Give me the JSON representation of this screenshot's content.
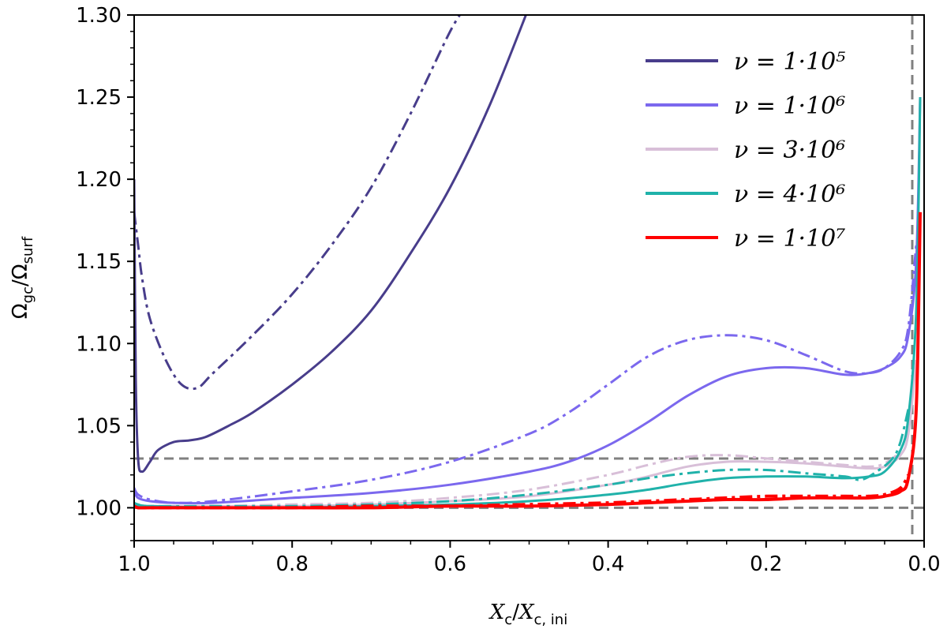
{
  "chart_data": {
    "type": "line",
    "xlabel": "Xc/Xc,ini",
    "ylabel": "Ωgc/Ωsurf",
    "xlim": [
      1.0,
      0.0
    ],
    "ylim": [
      0.98,
      1.3
    ],
    "x_ticks": [
      1.0,
      0.8,
      0.6,
      0.4,
      0.2,
      0.0
    ],
    "x_tick_labels": [
      "1.0",
      "0.8",
      "0.6",
      "0.4",
      "0.2",
      "0.0"
    ],
    "y_ticks": [
      1.0,
      1.05,
      1.1,
      1.15,
      1.2,
      1.25,
      1.3
    ],
    "y_tick_labels": [
      "1.00",
      "1.05",
      "1.10",
      "1.15",
      "1.20",
      "1.25",
      "1.30"
    ],
    "legend_position": "top-right",
    "legend": [
      {
        "label": "ν = 1·10⁵",
        "color": "#483d8b"
      },
      {
        "label": "ν = 1·10⁶",
        "color": "#7b68ee"
      },
      {
        "label": "ν = 3·10⁶",
        "color": "#d8bfd8"
      },
      {
        "label": "ν = 4·10⁶",
        "color": "#20b2aa"
      },
      {
        "label": "ν = 1·10⁷",
        "color": "#ff0000"
      }
    ],
    "reference_lines": {
      "horizontal": [
        1.0,
        1.03
      ],
      "vertical": [
        0.015
      ],
      "color": "#808080",
      "style": "dashed"
    },
    "series": [
      {
        "name": "ν=1e5 solid",
        "color": "#483d8b",
        "style": "solid",
        "width": 3,
        "x": [
          1.0,
          0.998,
          0.995,
          0.99,
          0.98,
          0.97,
          0.95,
          0.93,
          0.91,
          0.88,
          0.85,
          0.8,
          0.75,
          0.7,
          0.65,
          0.6,
          0.55,
          0.5
        ],
        "y": [
          1.2,
          1.08,
          1.03,
          1.022,
          1.028,
          1.035,
          1.04,
          1.041,
          1.043,
          1.05,
          1.058,
          1.075,
          1.095,
          1.12,
          1.155,
          1.195,
          1.245,
          1.305
        ]
      },
      {
        "name": "ν=1e5 dashdot",
        "color": "#483d8b",
        "style": "dashdot",
        "width": 3,
        "x": [
          1.0,
          0.995,
          0.99,
          0.98,
          0.96,
          0.94,
          0.92,
          0.9,
          0.85,
          0.8,
          0.75,
          0.7,
          0.65,
          0.6,
          0.58
        ],
        "y": [
          1.18,
          1.16,
          1.14,
          1.115,
          1.09,
          1.075,
          1.073,
          1.082,
          1.105,
          1.13,
          1.16,
          1.195,
          1.24,
          1.29,
          1.305
        ]
      },
      {
        "name": "ν=1e6 solid",
        "color": "#7b68ee",
        "style": "solid",
        "width": 3,
        "x": [
          1.0,
          0.995,
          0.98,
          0.95,
          0.9,
          0.8,
          0.7,
          0.6,
          0.5,
          0.45,
          0.4,
          0.35,
          0.3,
          0.25,
          0.2,
          0.15,
          0.1,
          0.07,
          0.05,
          0.03,
          0.02,
          0.01,
          0.005
        ],
        "y": [
          1.01,
          1.006,
          1.004,
          1.003,
          1.003,
          1.006,
          1.009,
          1.014,
          1.022,
          1.028,
          1.038,
          1.052,
          1.068,
          1.08,
          1.085,
          1.085,
          1.081,
          1.082,
          1.085,
          1.092,
          1.105,
          1.15,
          1.25
        ]
      },
      {
        "name": "ν=1e6 dashdot",
        "color": "#7b68ee",
        "style": "dashdot",
        "width": 3,
        "x": [
          1.0,
          0.995,
          0.98,
          0.95,
          0.9,
          0.8,
          0.7,
          0.6,
          0.5,
          0.45,
          0.4,
          0.35,
          0.3,
          0.25,
          0.2,
          0.15,
          0.1,
          0.07,
          0.05,
          0.03,
          0.02,
          0.01
        ],
        "y": [
          1.012,
          1.008,
          1.005,
          1.003,
          1.004,
          1.01,
          1.017,
          1.028,
          1.045,
          1.058,
          1.075,
          1.092,
          1.102,
          1.105,
          1.102,
          1.093,
          1.083,
          1.082,
          1.085,
          1.095,
          1.11,
          1.16
        ]
      },
      {
        "name": "ν=3e6 solid",
        "color": "#d8bfd8",
        "style": "solid",
        "width": 3,
        "x": [
          1.0,
          0.995,
          0.98,
          0.9,
          0.8,
          0.7,
          0.6,
          0.5,
          0.4,
          0.35,
          0.3,
          0.25,
          0.2,
          0.15,
          0.1,
          0.07,
          0.05,
          0.03,
          0.02,
          0.01
        ],
        "y": [
          1.002,
          1.001,
          1.001,
          1.001,
          1.001,
          1.002,
          1.004,
          1.007,
          1.014,
          1.019,
          1.025,
          1.028,
          1.028,
          1.027,
          1.025,
          1.024,
          1.025,
          1.032,
          1.045,
          1.09
        ]
      },
      {
        "name": "ν=3e6 dashdot",
        "color": "#d8bfd8",
        "style": "dashdot",
        "width": 3,
        "x": [
          1.0,
          0.995,
          0.98,
          0.9,
          0.8,
          0.7,
          0.6,
          0.5,
          0.4,
          0.35,
          0.3,
          0.25,
          0.2,
          0.15,
          0.1,
          0.07,
          0.05,
          0.03,
          0.02
        ],
        "y": [
          1.003,
          1.002,
          1.001,
          1.001,
          1.002,
          1.003,
          1.006,
          1.011,
          1.02,
          1.026,
          1.031,
          1.032,
          1.03,
          1.028,
          1.026,
          1.025,
          1.027,
          1.035,
          1.05
        ]
      },
      {
        "name": "ν=4e6 solid",
        "color": "#20b2aa",
        "style": "solid",
        "width": 3,
        "x": [
          1.0,
          0.995,
          0.98,
          0.9,
          0.8,
          0.7,
          0.6,
          0.5,
          0.4,
          0.35,
          0.3,
          0.25,
          0.2,
          0.15,
          0.1,
          0.07,
          0.05,
          0.03,
          0.02,
          0.01,
          0.005
        ],
        "y": [
          1.002,
          1.001,
          1.001,
          1.0,
          1.0,
          1.001,
          1.002,
          1.004,
          1.008,
          1.011,
          1.015,
          1.018,
          1.019,
          1.019,
          1.018,
          1.019,
          1.022,
          1.035,
          1.055,
          1.12,
          1.25
        ]
      },
      {
        "name": "ν=4e6 dashdot",
        "color": "#20b2aa",
        "style": "dashdot",
        "width": 3,
        "x": [
          1.0,
          0.995,
          0.98,
          0.9,
          0.8,
          0.7,
          0.6,
          0.5,
          0.4,
          0.35,
          0.3,
          0.25,
          0.2,
          0.15,
          0.1,
          0.08,
          0.06,
          0.04,
          0.03,
          0.02
        ],
        "y": [
          1.003,
          1.002,
          1.001,
          1.001,
          1.001,
          1.002,
          1.004,
          1.008,
          1.014,
          1.018,
          1.021,
          1.023,
          1.023,
          1.021,
          1.019,
          1.017,
          1.022,
          1.03,
          1.04,
          1.06
        ]
      },
      {
        "name": "ν=1e7 solid",
        "color": "#ff0000",
        "style": "solid",
        "width": 4,
        "x": [
          1.0,
          0.995,
          0.98,
          0.9,
          0.8,
          0.7,
          0.6,
          0.5,
          0.4,
          0.35,
          0.3,
          0.25,
          0.2,
          0.15,
          0.1,
          0.07,
          0.05,
          0.03,
          0.02,
          0.01,
          0.005
        ],
        "y": [
          1.001,
          1.0,
          1.0,
          1.0,
          1.0,
          1.0,
          1.001,
          1.001,
          1.002,
          1.003,
          1.004,
          1.005,
          1.005,
          1.006,
          1.006,
          1.006,
          1.007,
          1.01,
          1.018,
          1.06,
          1.18
        ]
      },
      {
        "name": "ν=1e7 dashdot",
        "color": "#ff0000",
        "style": "dashdot",
        "width": 4,
        "x": [
          1.0,
          0.995,
          0.98,
          0.9,
          0.8,
          0.7,
          0.6,
          0.5,
          0.4,
          0.35,
          0.3,
          0.25,
          0.2,
          0.15,
          0.1,
          0.07,
          0.05,
          0.03,
          0.02
        ],
        "y": [
          1.001,
          1.0,
          1.0,
          1.0,
          1.0,
          1.001,
          1.001,
          1.002,
          1.003,
          1.004,
          1.005,
          1.006,
          1.007,
          1.007,
          1.007,
          1.007,
          1.008,
          1.012,
          1.02
        ]
      }
    ]
  }
}
